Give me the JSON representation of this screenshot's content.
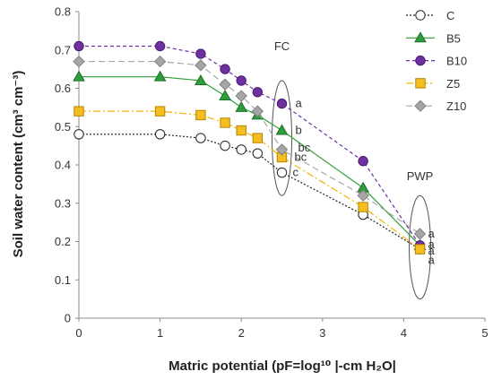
{
  "chart_data": {
    "type": "line",
    "xlabel": "Matric potential (pF=log¹⁰ |-cm H₂O|",
    "ylabel": "Soil water content (cm³ cm⁻³)",
    "xlim": [
      0,
      5
    ],
    "ylim": [
      0,
      0.8
    ],
    "xticks": [
      "0",
      "1",
      "2",
      "3",
      "4",
      "5"
    ],
    "yticks": [
      "0",
      "0.1",
      "0.2",
      "0.3",
      "0.4",
      "0.5",
      "0.6",
      "0.7",
      "0.8"
    ],
    "grid": false,
    "legend": "top-right",
    "series": [
      {
        "name": "C",
        "color": "#222222",
        "fill": "#ffffff",
        "dash": "2,2",
        "marker": "circle",
        "x": [
          0,
          1,
          1.5,
          1.8,
          2,
          2.2,
          2.5,
          3.5,
          4.2
        ],
        "y": [
          0.48,
          0.48,
          0.47,
          0.45,
          0.44,
          0.43,
          0.38,
          0.27,
          0.18
        ]
      },
      {
        "name": "B5",
        "color": "#2e9e3a",
        "fill": "#2e9e3a",
        "dash": "",
        "marker": "triangle",
        "x": [
          0,
          1,
          1.5,
          1.8,
          2,
          2.2,
          2.5,
          3.5,
          4.2
        ],
        "y": [
          0.63,
          0.63,
          0.62,
          0.58,
          0.55,
          0.53,
          0.49,
          0.34,
          0.19
        ]
      },
      {
        "name": "B10",
        "color": "#7030a0",
        "fill": "#7030a0",
        "dash": "4,3",
        "marker": "circle",
        "x": [
          0,
          1,
          1.5,
          1.8,
          2,
          2.2,
          2.5,
          3.5,
          4.2
        ],
        "y": [
          0.71,
          0.71,
          0.69,
          0.65,
          0.62,
          0.59,
          0.56,
          0.41,
          0.19
        ]
      },
      {
        "name": "Z5",
        "color": "#f0b400",
        "fill": "#f5bd1f",
        "dash": "8,3,2,3",
        "marker": "square",
        "x": [
          0,
          1,
          1.5,
          1.8,
          2,
          2.2,
          2.5,
          3.5,
          4.2
        ],
        "y": [
          0.54,
          0.54,
          0.53,
          0.51,
          0.49,
          0.47,
          0.42,
          0.29,
          0.18
        ]
      },
      {
        "name": "Z10",
        "color": "#a6a6a6",
        "fill": "#a6a6a6",
        "dash": "7,4",
        "marker": "diamond",
        "x": [
          0,
          1,
          1.5,
          1.8,
          2,
          2.2,
          2.5,
          3.5,
          4.2
        ],
        "y": [
          0.67,
          0.67,
          0.66,
          0.61,
          0.58,
          0.54,
          0.44,
          0.32,
          0.22
        ]
      }
    ],
    "ellipses": [
      {
        "label": "FC",
        "x": 2.5
      },
      {
        "label": "PWP",
        "x": 4.2
      }
    ],
    "annotations": [
      {
        "text": "a",
        "x": 2.5,
        "y": 0.56
      },
      {
        "text": "b",
        "x": 2.5,
        "y": 0.49
      },
      {
        "text": "bc",
        "x": 2.5,
        "y": 0.44
      },
      {
        "text": "bc",
        "x": 2.5,
        "y": 0.42
      },
      {
        "text": "c",
        "x": 2.5,
        "y": 0.38
      },
      {
        "text": "a",
        "x": 4.2,
        "y": 0.22
      },
      {
        "text": "a",
        "x": 4.2,
        "y": 0.19
      },
      {
        "text": "a",
        "x": 4.2,
        "y": 0.175
      },
      {
        "text": "a",
        "x": 4.2,
        "y": 0.155
      }
    ]
  }
}
